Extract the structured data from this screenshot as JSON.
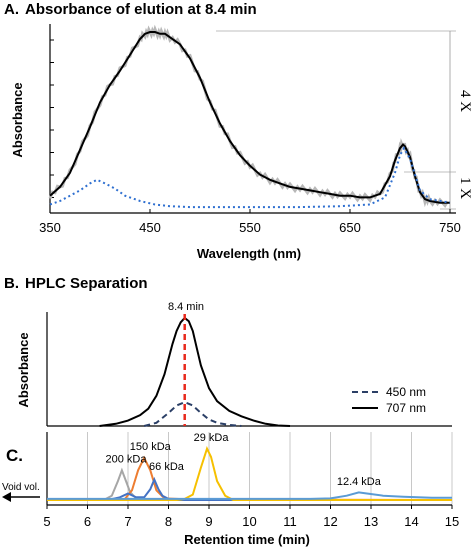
{
  "colors": {
    "black": "#000000",
    "blue_dotted": "#2e6fd0",
    "gray_noise": "#b8b8b8",
    "red_marker": "#e8291c",
    "navy_dash": "#2b3f66",
    "grid": "#c8c8c8",
    "c200": "#a6a6a6",
    "c150": "#ed7d31",
    "c66": "#4472c4",
    "c29": "#f6c000",
    "c124": "#5b9bd5"
  },
  "chart_data": [
    {
      "panel": "A.",
      "type": "line",
      "title": "Absorbance of elution at 8.4 min",
      "xlabel": "Wavelength (nm)",
      "ylabel": "Absorbance",
      "xlim": [
        350,
        755
      ],
      "ylim": [
        0,
        1
      ],
      "xticks": [
        350,
        450,
        550,
        650,
        750
      ],
      "scale_labels": [
        "4 X",
        "1 X"
      ],
      "series": [
        {
          "style": "solid",
          "x": [
            350,
            360,
            370,
            380,
            390,
            400,
            410,
            420,
            430,
            440,
            445,
            450,
            455,
            460,
            465,
            470,
            480,
            490,
            500,
            510,
            520,
            530,
            540,
            550,
            560,
            570,
            580,
            590,
            600,
            610,
            620,
            630,
            640,
            650,
            660,
            670,
            680,
            690,
            695,
            700,
            703,
            705,
            710,
            715,
            720,
            725,
            730,
            740,
            750
          ],
          "y": [
            0.07,
            0.12,
            0.2,
            0.33,
            0.46,
            0.6,
            0.7,
            0.78,
            0.87,
            0.96,
            0.99,
            1.0,
            1.0,
            0.99,
            0.99,
            0.97,
            0.93,
            0.85,
            0.74,
            0.6,
            0.48,
            0.38,
            0.3,
            0.24,
            0.19,
            0.16,
            0.14,
            0.12,
            0.11,
            0.1,
            0.09,
            0.08,
            0.07,
            0.07,
            0.06,
            0.06,
            0.08,
            0.18,
            0.27,
            0.34,
            0.36,
            0.35,
            0.29,
            0.18,
            0.09,
            0.05,
            0.04,
            0.03,
            0.03
          ]
        },
        {
          "style": "dotted",
          "x": [
            350,
            360,
            370,
            380,
            390,
            397,
            405,
            415,
            425,
            440,
            455,
            470,
            490,
            520,
            560,
            600,
            640,
            670,
            685,
            695,
            700,
            704,
            710,
            720,
            730,
            750
          ],
          "y": [
            0.02,
            0.04,
            0.07,
            0.1,
            0.14,
            0.16,
            0.14,
            0.11,
            0.07,
            0.04,
            0.02,
            0.01,
            0.005,
            0.005,
            0.005,
            0.005,
            0.01,
            0.02,
            0.06,
            0.2,
            0.3,
            0.34,
            0.28,
            0.1,
            0.05,
            0.03
          ]
        }
      ]
    },
    {
      "panel": "B.",
      "type": "line",
      "title": "HPLC Separation",
      "ylabel": "Absorbance",
      "annotation": "8.4 min",
      "annotation_x": 8.4,
      "xlim": [
        5,
        15
      ],
      "ylim": [
        0,
        1
      ],
      "series": [
        {
          "name": "707 nm",
          "style": "solid",
          "x": [
            6.3,
            6.7,
            7.0,
            7.3,
            7.5,
            7.7,
            7.9,
            8.0,
            8.1,
            8.2,
            8.3,
            8.4,
            8.5,
            8.6,
            8.7,
            8.8,
            9.0,
            9.2,
            9.5,
            9.8,
            10.1,
            10.4,
            10.7,
            11.0
          ],
          "y": [
            0.0,
            0.02,
            0.05,
            0.1,
            0.16,
            0.28,
            0.48,
            0.62,
            0.76,
            0.88,
            0.96,
            1.0,
            0.97,
            0.88,
            0.72,
            0.56,
            0.35,
            0.23,
            0.14,
            0.09,
            0.05,
            0.02,
            0.005,
            0.0
          ]
        },
        {
          "name": "450 nm",
          "style": "dashed",
          "x": [
            7.4,
            7.7,
            8.0,
            8.2,
            8.4,
            8.6,
            8.8,
            9.0,
            9.2,
            9.5,
            9.8
          ],
          "y": [
            0.0,
            0.03,
            0.12,
            0.19,
            0.22,
            0.19,
            0.12,
            0.06,
            0.03,
            0.01,
            0.0
          ]
        }
      ]
    },
    {
      "panel": "C.",
      "type": "line",
      "xlabel": "Retention time (min)",
      "xlim": [
        5,
        15
      ],
      "ylim": [
        0,
        1
      ],
      "xticks": [
        5,
        6,
        7,
        8,
        9,
        10,
        11,
        12,
        13,
        14,
        15
      ],
      "side_label": "Void vol.",
      "series": [
        {
          "label": "200 kDa",
          "color": "#a6a6a6",
          "x": [
            5,
            6.4,
            6.6,
            6.75,
            6.85,
            6.95,
            7.05,
            7.2,
            7.4,
            15
          ],
          "y": [
            0,
            0,
            0.08,
            0.35,
            0.55,
            0.35,
            0.15,
            0.03,
            0,
            0
          ]
        },
        {
          "label": "150 kDa",
          "color": "#ed7d31",
          "x": [
            5,
            6.9,
            7.1,
            7.25,
            7.4,
            7.55,
            7.7,
            7.9,
            8.2,
            8.5,
            15
          ],
          "y": [
            0,
            0,
            0.18,
            0.55,
            0.78,
            0.55,
            0.18,
            0.03,
            0.02,
            0.01,
            0
          ]
        },
        {
          "label": "66 kDa",
          "color": "#4472c4",
          "x": [
            5,
            6.5,
            6.8,
            7.0,
            7.2,
            7.4,
            7.55,
            7.65,
            7.75,
            7.85,
            8.0,
            8.2,
            15
          ],
          "y": [
            0,
            0,
            0.05,
            0.12,
            0.05,
            0.05,
            0.2,
            0.38,
            0.2,
            0.08,
            0.02,
            0,
            0
          ]
        },
        {
          "label": "29 kDa",
          "color": "#f6c000",
          "x": [
            5,
            8.2,
            8.4,
            8.6,
            8.8,
            8.95,
            9.05,
            9.2,
            9.4,
            9.6,
            15
          ],
          "y": [
            0,
            0,
            0.02,
            0.1,
            0.6,
            0.95,
            0.8,
            0.35,
            0.08,
            0.0,
            0
          ]
        },
        {
          "label": "12.4 kDa",
          "color": "#5b9bd5",
          "x": [
            5,
            11.5,
            12.0,
            12.4,
            12.7,
            12.9,
            13.3,
            13.8,
            14.5,
            15
          ],
          "y": [
            0.02,
            0.02,
            0.03,
            0.08,
            0.14,
            0.12,
            0.08,
            0.06,
            0.04,
            0.04
          ]
        }
      ]
    }
  ]
}
